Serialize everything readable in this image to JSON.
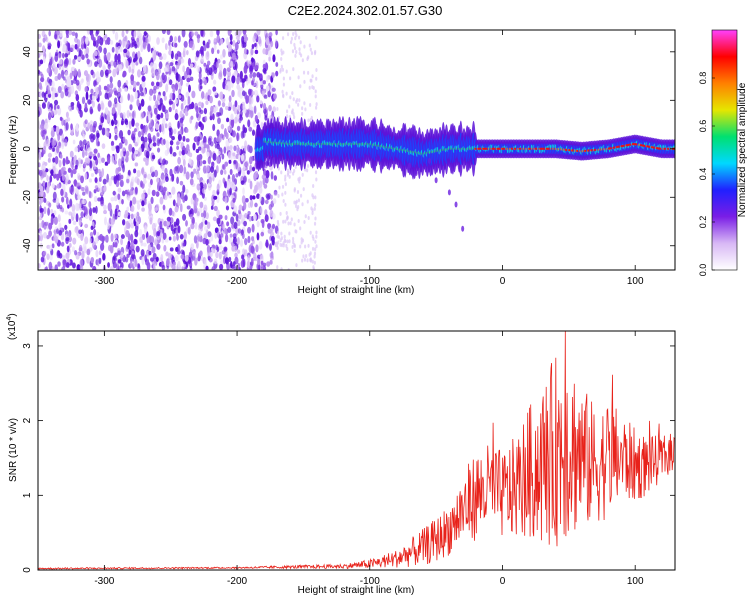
{
  "title": "C2E2.2024.302.01.57.G30",
  "chart_data": [
    {
      "type": "heatmap",
      "xlabel": "Height of straight line (km)",
      "ylabel": "Frequency (Hz)",
      "xlim": [
        -350,
        130
      ],
      "ylim": [
        -50,
        49
      ],
      "xticks": [
        -300,
        -200,
        -100,
        0,
        100
      ],
      "yticks": [
        -40,
        -20,
        0,
        20,
        40
      ],
      "colorbar": {
        "label": "Normalized spectral amplitude",
        "range": [
          0,
          1
        ],
        "ticks": [
          0.0,
          0.2,
          0.4,
          0.6,
          0.8
        ],
        "tick_labels": [
          "0.0",
          "0.2",
          "0.4",
          "0.6",
          "0.8"
        ],
        "colormap": [
          "#ffffff",
          "#d8b8f5",
          "#7a1ee6",
          "#2020ff",
          "#00d8ff",
          "#00e070",
          "#e6e600",
          "#ff8000",
          "#ff0000",
          "#ff40ff"
        ]
      },
      "noise_region": [
        -350,
        -140
      ],
      "ridge": {
        "description_values_x": [
          -180,
          -160,
          -140,
          -120,
          -100,
          -80,
          -60,
          -40,
          -20,
          0,
          20,
          40,
          60,
          80,
          100,
          120
        ],
        "frequency_hz": [
          3,
          2,
          2,
          2,
          2,
          0,
          -2,
          0,
          0,
          0,
          0,
          0,
          -1,
          0,
          2,
          0
        ]
      }
    },
    {
      "type": "line",
      "xlabel": "Height of straight line (km)",
      "ylabel": "SNR (10 * v/v)",
      "y_multiplier_label": "(x10",
      "y_multiplier_exp": "4",
      "xlim": [
        -350,
        130
      ],
      "ylim": [
        0,
        3.2
      ],
      "xticks": [
        -300,
        -200,
        -100,
        0,
        100
      ],
      "yticks": [
        0,
        1,
        2,
        3
      ],
      "series": [
        {
          "color": "#e8221a",
          "envelope_x": [
            -350,
            -200,
            -120,
            -100,
            -80,
            -60,
            -50,
            -40,
            -30,
            -20,
            -10,
            0,
            10,
            20,
            30,
            40,
            50,
            60,
            70,
            80,
            90,
            100,
            110,
            120,
            130
          ],
          "envelope_mean": [
            0.02,
            0.03,
            0.05,
            0.08,
            0.15,
            0.3,
            0.4,
            0.55,
            0.8,
            1.0,
            1.1,
            1.0,
            1.1,
            1.3,
            1.4,
            1.6,
            1.7,
            1.5,
            1.4,
            1.5,
            1.5,
            1.4,
            1.4,
            1.5,
            1.6
          ],
          "envelope_amplitude": [
            0.01,
            0.01,
            0.03,
            0.06,
            0.12,
            0.25,
            0.3,
            0.35,
            0.5,
            0.6,
            0.6,
            0.6,
            0.7,
            0.9,
            1.1,
            1.3,
            1.3,
            1.0,
            0.8,
            0.8,
            0.6,
            0.5,
            0.4,
            0.3,
            0.25
          ]
        }
      ]
    }
  ]
}
